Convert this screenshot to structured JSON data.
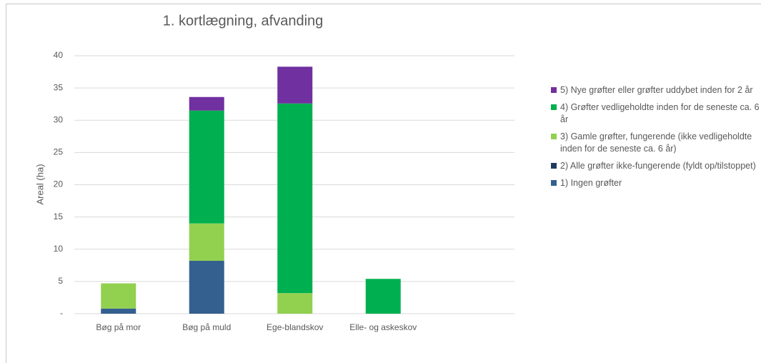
{
  "chart_data": {
    "type": "stacked_bar",
    "title": "1. kortlægning, afvanding",
    "y_label": "Areal (ha)",
    "categories": [
      "Bøg på mor",
      "Bøg på muld",
      "Ege-blandskov",
      "Elle- og askeskov"
    ],
    "series": [
      {
        "name": "1) Ingen grøfter",
        "color": "#34608f",
        "values": [
          0.8,
          8.2,
          0,
          0
        ]
      },
      {
        "name": "2) Alle grøfter ikke-fungerende (fyldt op/tilstoppet)",
        "color": "#1f3a5c",
        "values": [
          0,
          0,
          0,
          0
        ]
      },
      {
        "name": "3) Gamle grøfter, fungerende (ikke vedligeholdte inden for de seneste ca. 6 år)",
        "color": "#92d050",
        "values": [
          3.9,
          5.8,
          3.2,
          0
        ]
      },
      {
        "name": "4) Grøfter vedligeholdte inden for de seneste ca. 6 år",
        "color": "#00b050",
        "values": [
          0,
          17.5,
          29.4,
          5.4
        ]
      },
      {
        "name": "5) Nye grøfter eller grøfter uddybet inden for 2 år",
        "color": "#7030a0",
        "values": [
          0,
          2.1,
          5.7,
          0
        ]
      }
    ],
    "ylim": [
      0,
      40
    ],
    "yticks": [
      {
        "value": 0,
        "label": "-"
      },
      5,
      10,
      15,
      20,
      25,
      30,
      35,
      40
    ],
    "grid": true
  }
}
